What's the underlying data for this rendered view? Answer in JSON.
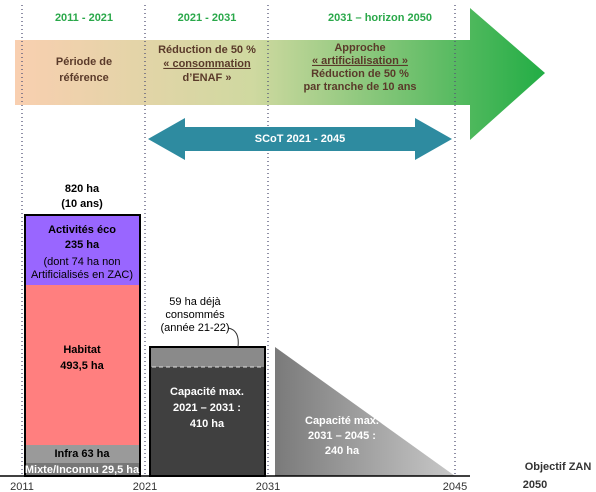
{
  "periods": [
    "2011 - 2021",
    "2021 - 2031",
    "2031 – horizon 2050"
  ],
  "phases": [
    [
      "Période de",
      "référence"
    ],
    [
      "Réduction de 50 %",
      "« consommation",
      "d’ENAF »"
    ],
    [
      "Approche",
      "« artificialisation »",
      "Réduction de 50 %",
      "par tranche de 10 ans"
    ]
  ],
  "scot": "SCoT 2021 - 2045",
  "total": [
    "820 ha",
    "(10 ans)"
  ],
  "segments": {
    "activites": [
      "Activités éco",
      "235 ha",
      "(dont 74 ha non",
      "Artificialisés en ZAC)"
    ],
    "habitat": [
      "Habitat",
      "493,5 ha"
    ],
    "infra": "Infra 63 ha",
    "mixte": "Mixte/Inconnu 29,5 ha"
  },
  "consumed": [
    "59 ha déjà",
    "consommés",
    "(année 21-22)"
  ],
  "capacity1": [
    "Capacité max.",
    "2021 – 2031 :",
    "410 ha"
  ],
  "capacity2": [
    "Capacité max.",
    "2031 – 2045 :",
    "240 ha"
  ],
  "objective": [
    "Objectif ZAN",
    "2050"
  ],
  "years": [
    "2011",
    "2021",
    "2031",
    "2045"
  ]
}
